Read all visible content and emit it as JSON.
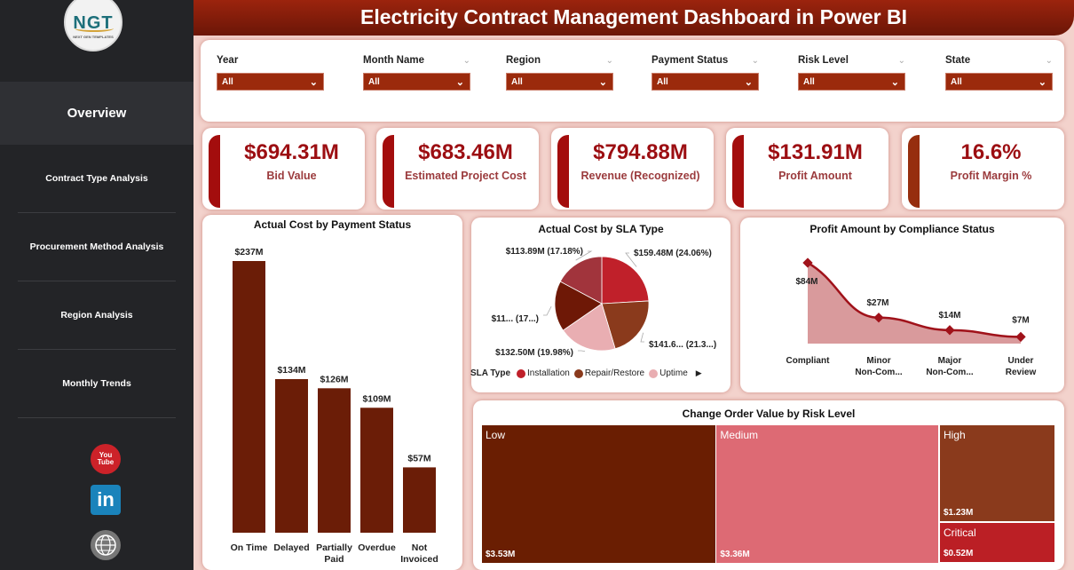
{
  "header": {
    "title": "Electricity Contract Management Dashboard in Power BI"
  },
  "sidebar": {
    "logo": {
      "text": "NGT",
      "subtitle": "NEXT GEN TEMPLATES"
    },
    "active": "Overview",
    "items": [
      {
        "label": "Contract Type Analysis"
      },
      {
        "label": "Procurement Method Analysis"
      },
      {
        "label": "Region Analysis"
      },
      {
        "label": "Monthly Trends"
      }
    ],
    "social": [
      {
        "icon": "youtube-icon",
        "text": "You Tube"
      },
      {
        "icon": "linkedin-icon",
        "text": "in"
      },
      {
        "icon": "globe-www-icon",
        "text": "www"
      }
    ]
  },
  "filters": [
    {
      "label": "Year",
      "value": "All"
    },
    {
      "label": "Month Name",
      "value": "All"
    },
    {
      "label": "Region",
      "value": "All"
    },
    {
      "label": "Payment Status",
      "value": "All"
    },
    {
      "label": "Risk Level",
      "value": "All"
    },
    {
      "label": "State",
      "value": "All"
    }
  ],
  "kpis": [
    {
      "value": "$694.31M",
      "label": "Bid Value"
    },
    {
      "value": "$683.46M",
      "label": "Estimated Project Cost"
    },
    {
      "value": "$794.88M",
      "label": "Revenue (Recognized)"
    },
    {
      "value": "$131.91M",
      "label": "Profit Amount"
    },
    {
      "value": "16.6%",
      "label": "Profit Margin %"
    }
  ],
  "colors": {
    "bar": "#6b1d07",
    "line": "#a0121a",
    "area_fill": "#d99a9c",
    "accent": "#9b2a0c"
  },
  "chart_data": [
    {
      "type": "bar",
      "title": "Actual Cost by Payment Status",
      "categories": [
        "On Time",
        "Delayed",
        "Partially Paid",
        "Overdue",
        "Not Invoiced"
      ],
      "category_lines": [
        [
          "On Time"
        ],
        [
          "Delayed"
        ],
        [
          "Partially",
          "Paid"
        ],
        [
          "Overdue"
        ],
        [
          "Not",
          "Invoiced"
        ]
      ],
      "values": [
        237,
        134,
        126,
        109,
        57
      ],
      "labels": [
        "$237M",
        "$134M",
        "$126M",
        "$109M",
        "$57M"
      ],
      "unit": "$M",
      "ylim": [
        0,
        237
      ]
    },
    {
      "type": "pie",
      "title": "Actual Cost by SLA Type",
      "legend_title": "SLA Type",
      "legend_position": "bottom",
      "slices": [
        {
          "name": "Installation",
          "value": 159.48,
          "pct": 24.06,
          "label": "$159.48M (24.06%)",
          "color": "#c0202a"
        },
        {
          "name": "Repair/Restore",
          "value": 141.6,
          "pct": 21.3,
          "label": "$141.6... (21.3...)",
          "color": "#8a3a1c"
        },
        {
          "name": "Uptime",
          "value": 132.5,
          "pct": 19.98,
          "label": "$132.50M (19.98%)",
          "color": "#e9aeb2"
        },
        {
          "name": "(hidden)",
          "value": 115.5,
          "pct": 17.4,
          "label": "$11... (17...)",
          "color": "#6e1806"
        },
        {
          "name": "(hidden)",
          "value": 113.89,
          "pct": 17.18,
          "label": "$113.89M (17.18%)",
          "color": "#a1343c"
        }
      ],
      "legend_items": [
        "Installation",
        "Repair/Restore",
        "Uptime"
      ]
    },
    {
      "type": "area",
      "title": "Profit Amount by Compliance Status",
      "categories": [
        "Compliant",
        "Minor Non-Com...",
        "Major Non-Com...",
        "Under Review"
      ],
      "category_lines": [
        [
          "Compliant"
        ],
        [
          "Minor",
          "Non-Com..."
        ],
        [
          "Major",
          "Non-Com..."
        ],
        [
          "Under",
          "Review"
        ]
      ],
      "values": [
        84,
        27,
        14,
        7
      ],
      "labels": [
        "$84M",
        "$27M",
        "$14M",
        "$7M"
      ],
      "unit": "$M",
      "ylim": [
        0,
        84
      ]
    },
    {
      "type": "treemap",
      "title": "Change Order Value by Risk Level",
      "items": [
        {
          "name": "Low",
          "value": 3.53,
          "label": "$3.53M",
          "color": "#6a1e02"
        },
        {
          "name": "Medium",
          "value": 3.36,
          "label": "$3.36M",
          "color": "#dd6a74"
        },
        {
          "name": "High",
          "value": 1.23,
          "label": "$1.23M",
          "color": "#8a3a1c"
        },
        {
          "name": "Critical",
          "value": 0.52,
          "label": "$0.52M",
          "color": "#bb1f25"
        }
      ]
    }
  ]
}
